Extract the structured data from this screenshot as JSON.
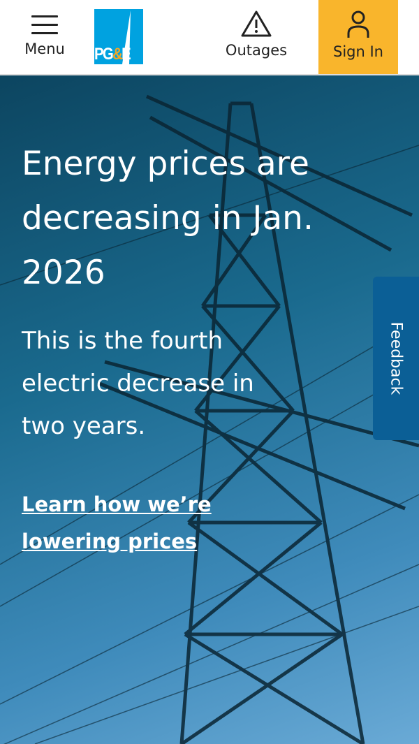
{
  "header": {
    "menu_label": "Menu",
    "logo_text": "PG&E",
    "outages_label": "Outages",
    "signin_label": "Sign In",
    "signin_color": "#f9b52c"
  },
  "hero": {
    "headline": "Energy prices are decreasing in Jan. 2026",
    "subtext": "This is the fourth electric decrease in two years.",
    "link_text": "Learn how we’re lowering prices"
  },
  "feedback": {
    "label": "Feedback",
    "color": "#0b5f96"
  }
}
